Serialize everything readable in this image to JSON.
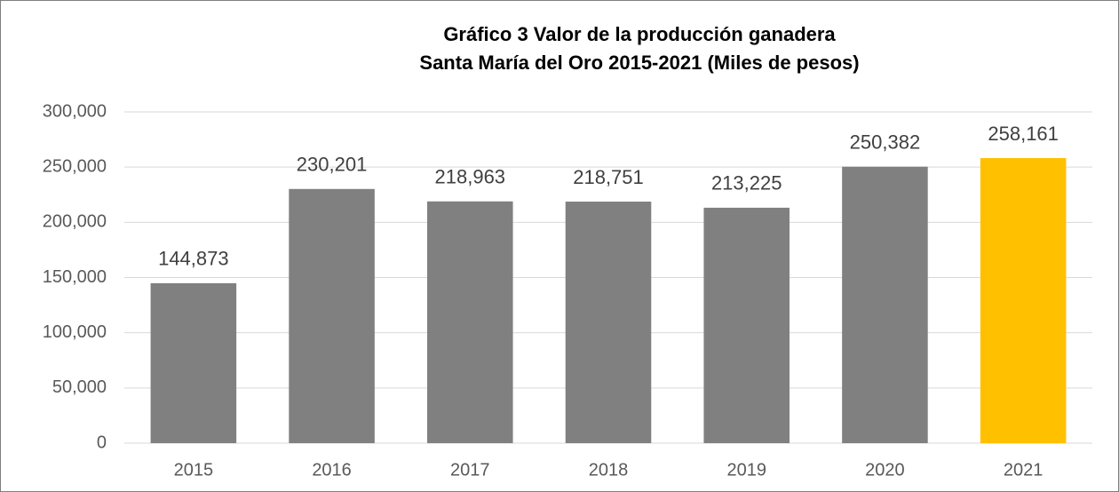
{
  "chart_data": {
    "type": "bar",
    "title": [
      "Gráfico 3 Valor de la producción ganadera",
      "Santa María del Oro  2015-2021 (Miles de pesos)"
    ],
    "categories": [
      "2015",
      "2016",
      "2017",
      "2018",
      "2019",
      "2020",
      "2021"
    ],
    "values": [
      144873,
      230201,
      218963,
      218751,
      213225,
      250382,
      258161
    ],
    "value_labels": [
      "144,873",
      "230,201",
      "218,963",
      "218,751",
      "213,225",
      "250,382",
      "258,161"
    ],
    "colors": [
      "#808080",
      "#808080",
      "#808080",
      "#808080",
      "#808080",
      "#808080",
      "#ffc000"
    ],
    "ylim": [
      0,
      300000
    ],
    "yticks": [
      0,
      {
        "value": 50000,
        "label": "50,000"
      },
      {
        "value": 100000,
        "label": "100,000"
      },
      {
        "value": 150000,
        "label": "150,000"
      },
      {
        "value": 200000,
        "label": "200,000"
      },
      {
        "value": 250000,
        "label": "250,000"
      },
      {
        "value": 300000,
        "label": "300,000"
      }
    ],
    "grid": true
  }
}
